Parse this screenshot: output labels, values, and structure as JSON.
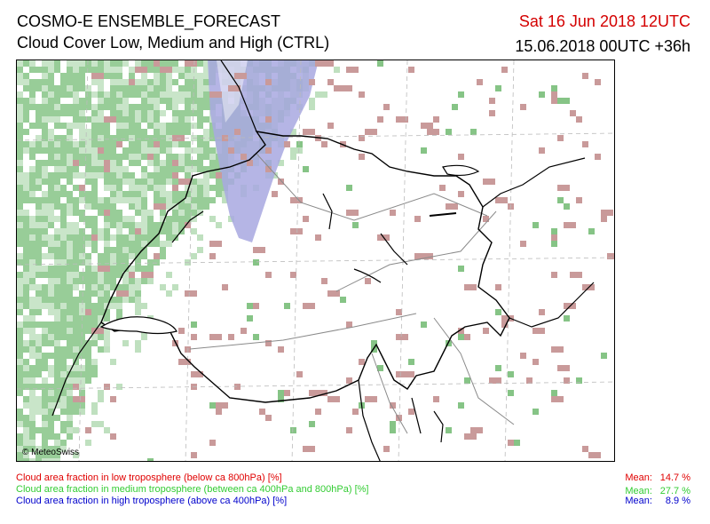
{
  "header": {
    "title_line1": "COSMO-E ENSEMBLE_FORECAST",
    "title_line2": "Cloud Cover Low, Medium and High (CTRL)",
    "valid_time": "Sat 16 Jun 2018 12UTC",
    "run_time": "15.06.2018 00UTC +36h"
  },
  "map": {
    "copyright": "© MeteoSwiss",
    "colors": {
      "low_cloud": "#c99a9a",
      "medium_cloud_dark": "#86c486",
      "medium_cloud_light": "#bfe0bf",
      "high_cloud": "#a8a8e0",
      "border": "#000000",
      "lakes": "#000000",
      "rivers": "#8a8a8a",
      "grid": "#bbbbbb"
    }
  },
  "legend": [
    {
      "label": "Cloud area fraction in low troposphere (below ca 800hPa) [%]",
      "mean_label": "Mean:",
      "mean_value": "14.7 %",
      "color": "#e00000"
    },
    {
      "label": "Cloud area fraction in medium troposphere (between ca 400hPa and 800hPa) [%]",
      "mean_label": "Mean:",
      "mean_value": "27.7 %",
      "color": "#33cc33"
    },
    {
      "label": "Cloud area fraction in high troposphere (above ca 400hPa) [%]",
      "mean_label": "Mean:",
      "mean_value": "8.9 %",
      "color": "#0000cc"
    }
  ]
}
